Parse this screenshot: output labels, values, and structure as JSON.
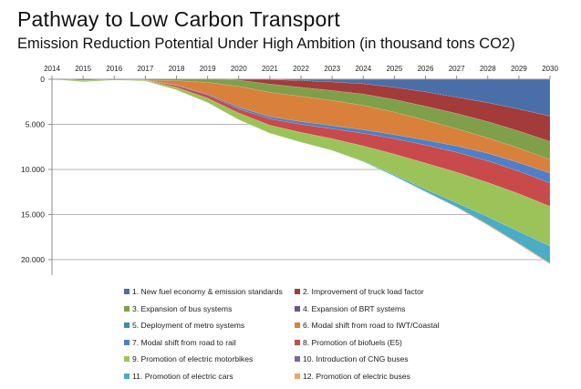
{
  "title": "Pathway to Low Carbon Transport",
  "subtitle": "Emission Reduction Potential Under High Ambition (in thousand tons CO2)",
  "chart_data": {
    "type": "area",
    "stacked": true,
    "orientation": "values plotted downward from 0 (reversed y-axis), x-axis labels on top",
    "title": "Emission Reduction Potential Under High Ambition (in thousand tons CO2)",
    "xlabel": "",
    "ylabel": "",
    "x": [
      2014,
      2015,
      2016,
      2017,
      2018,
      2019,
      2020,
      2021,
      2022,
      2023,
      2024,
      2025,
      2026,
      2027,
      2028,
      2029,
      2030
    ],
    "x_tick_labels": [
      "2014",
      "2015",
      "2016",
      "2017",
      "2018",
      "2019",
      "2020",
      "2021",
      "2022",
      "2023",
      "2024",
      "2025",
      "2026",
      "2027",
      "2028",
      "2029",
      "2030"
    ],
    "y_tick_values": [
      0,
      5000,
      10000,
      15000,
      20000
    ],
    "y_tick_labels": [
      "0",
      "5.000",
      "10.000",
      "15.000",
      "20.000"
    ],
    "ylim": [
      0,
      22000
    ],
    "y_reversed": true,
    "grid": "horizontal major gridlines",
    "legend_position": "bottom",
    "series": [
      {
        "name": "1. New fuel economy & emission standards",
        "color": "#4a6fa8",
        "values": [
          0,
          0,
          0,
          0,
          0,
          0,
          0,
          50,
          150,
          300,
          500,
          900,
          1400,
          2000,
          2600,
          3300,
          4100
        ]
      },
      {
        "name": "2. Improvement of truck load factor",
        "color": "#a33b3a",
        "values": [
          0,
          0,
          0,
          0,
          0,
          0,
          100,
          500,
          750,
          950,
          1150,
          1350,
          1600,
          1800,
          2100,
          2450,
          2800
        ]
      },
      {
        "name": "3. Expansion of bus systems",
        "color": "#7f9f4a",
        "values": [
          0,
          150,
          50,
          100,
          150,
          350,
          700,
          900,
          1000,
          1100,
          1250,
          1400,
          1550,
          1700,
          1800,
          1900,
          2000
        ]
      },
      {
        "name": "4. Expansion of BRT systems",
        "color": "#6a538a",
        "values": [
          0,
          0,
          0,
          0,
          0,
          0,
          0,
          0,
          0,
          0,
          0,
          0,
          0,
          0,
          0,
          0,
          0
        ]
      },
      {
        "name": "5. Deployment of metro systems",
        "color": "#3f8f9f",
        "values": [
          0,
          0,
          0,
          0,
          0,
          0,
          0,
          0,
          0,
          0,
          0,
          0,
          0,
          0,
          0,
          0,
          0
        ]
      },
      {
        "name": "6. Modal shift from road to IWT/Coastal",
        "color": "#d9803a",
        "values": [
          0,
          0,
          0,
          0,
          500,
          1300,
          2300,
          2700,
          2800,
          2800,
          2700,
          2500,
          2200,
          1900,
          1700,
          1600,
          1500
        ]
      },
      {
        "name": "7. Modal shift from road to rail",
        "color": "#4f7fc8",
        "values": [
          0,
          0,
          0,
          0,
          50,
          100,
          200,
          250,
          300,
          350,
          400,
          450,
          550,
          700,
          850,
          950,
          1100
        ]
      },
      {
        "name": "8. Promotion of biofuels (E5)",
        "color": "#c84a4a",
        "values": [
          0,
          0,
          0,
          0,
          200,
          350,
          450,
          700,
          900,
          1100,
          1400,
          1700,
          2000,
          2200,
          2400,
          2500,
          2600
        ]
      },
      {
        "name": "9. Promotion of electric motorbikes",
        "color": "#9bc35a",
        "values": [
          0,
          150,
          50,
          100,
          300,
          500,
          750,
          900,
          1100,
          1300,
          1700,
          2300,
          2900,
          3400,
          3800,
          4200,
          4400
        ]
      },
      {
        "name": "10. Introduction of CNG buses",
        "color": "#8064a2",
        "values": [
          0,
          0,
          0,
          0,
          0,
          0,
          0,
          0,
          0,
          0,
          0,
          0,
          0,
          0,
          0,
          0,
          0
        ]
      },
      {
        "name": "11. Promotion of electric cars",
        "color": "#4bacc6",
        "values": [
          0,
          0,
          0,
          0,
          0,
          0,
          0,
          0,
          0,
          0,
          50,
          150,
          250,
          450,
          850,
          1300,
          1900
        ]
      },
      {
        "name": "12. Promotion of electric buses",
        "color": "#f2a65e",
        "values": [
          0,
          0,
          0,
          0,
          0,
          0,
          0,
          0,
          0,
          0,
          0,
          0,
          50,
          50,
          100,
          100,
          100
        ]
      }
    ]
  }
}
